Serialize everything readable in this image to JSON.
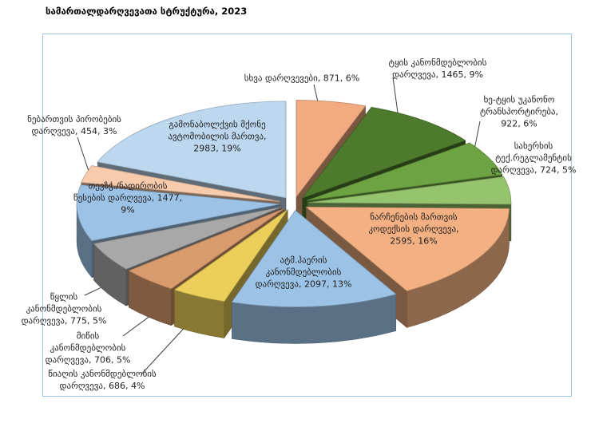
{
  "title": "სამართალდარღვევათა სტრუქტურა, 2023",
  "chart_frame": {
    "border_color": "#9dc3e6",
    "background": "#ffffff"
  },
  "chart_data": {
    "type": "pie",
    "style": "3d-exploded",
    "title": "სამართალდარღვევათა სტრუქტურა, 2023",
    "direction": "clockwise",
    "start_angle_deg": 0,
    "total": 15755,
    "legend_position": "none",
    "label_format": "name, value, percent",
    "slices": [
      {
        "name": "სხვა დარღვევები",
        "value": 871,
        "pct": 6,
        "color": "#f2ab80",
        "label_lines": [
          "სხვა დარღვევები, 871, 6%"
        ]
      },
      {
        "name": "ტყის კანონმდებლობის დარღვევა",
        "value": 1465,
        "pct": 9,
        "color": "#4d7a2c",
        "label_lines": [
          "ტყის კანონმდებლობის",
          "დარღვევა, 1465, 9%"
        ]
      },
      {
        "name": "ხე-ტყის უკანონო ტრანსპორტირება",
        "value": 922,
        "pct": 6,
        "color": "#6da343",
        "label_lines": [
          "ხე-ტყის უკანონო",
          "ტრანსპორტირება,",
          "922, 6%"
        ]
      },
      {
        "name": "სახერხის ტექ.რეგლამენტის დარღვევა",
        "value": 724,
        "pct": 5,
        "color": "#96c36e",
        "label_lines": [
          "სახერხის",
          "ტექ.რეგლამენტის",
          "დარღვევა, 724, 5%"
        ]
      },
      {
        "name": "ნარჩენების მართვის კოდექსის დარღვევა",
        "value": 2595,
        "pct": 16,
        "color": "#f3b183",
        "label_lines": [
          "ნარჩენების მართვის",
          "კოდექსის დარღვევა,",
          "2595, 16%"
        ]
      },
      {
        "name": "ატმ.ჰაერის კანონმდებლობის დარღვევა",
        "value": 2097,
        "pct": 13,
        "color": "#9cc3e5",
        "label_lines": [
          "ატმ.ჰაერის",
          "კანონმდებლობის",
          "დარღვევა, 2097, 13%"
        ]
      },
      {
        "name": "წიაღის კანონმდებლობის დარღვევა",
        "value": 686,
        "pct": 4,
        "color": "#ebcf5a",
        "label_lines": [
          "წიაღის კანონმდებლობის",
          "დარღვევა, 686, 4%"
        ]
      },
      {
        "name": "მიწის კანონმდებლობის დარღვევა",
        "value": 706,
        "pct": 5,
        "color": "#d89b6e",
        "label_lines": [
          "მიწის",
          "კანონმდებლობის",
          "დარღვევა, 706, 5%"
        ]
      },
      {
        "name": "წყლის კანონმდებლობის დარღვევა",
        "value": 775,
        "pct": 5,
        "color": "#a8a8a8",
        "label_lines": [
          "წყლის",
          "კანონმდებლობის",
          "დარღვევა, 775, 5%"
        ]
      },
      {
        "name": "თევზჭ./ნადირობის წესების დარღვევა",
        "value": 1477,
        "pct": 9,
        "color": "#9cc2e5",
        "label_lines": [
          "თევზჭ./ნადირობის",
          "წესების დარღვევა, 1477,",
          "9%"
        ]
      },
      {
        "name": "ნებართვის პირობების დარღვევა",
        "value": 454,
        "pct": 3,
        "color": "#f8cbad",
        "label_lines": [
          "ნებართვის პირობების",
          "დარღვევა, 454, 3%"
        ]
      },
      {
        "name": "გამონაბოლქვის მქონე ავტომობილის მართვა",
        "value": 2983,
        "pct": 19,
        "color": "#bdd7ee",
        "label_lines": [
          "გამონაბოლქვის მქონე",
          "ავტომობილის მართვა,",
          "2983, 19%"
        ]
      }
    ]
  }
}
